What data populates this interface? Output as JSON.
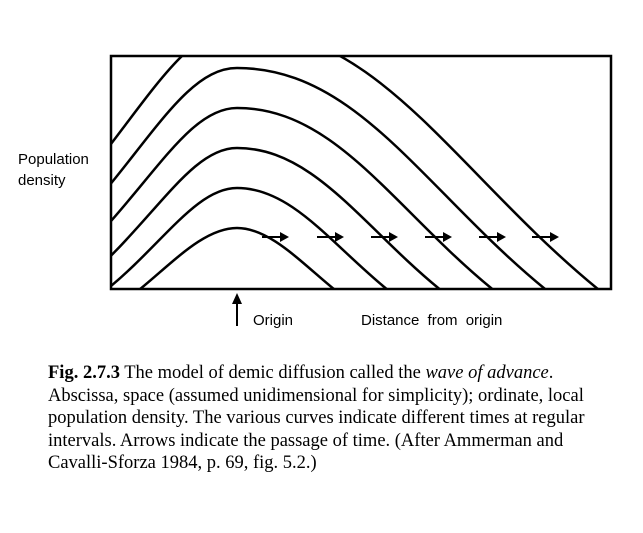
{
  "diagram": {
    "ylabel_line1": "Population",
    "ylabel_line2": "density",
    "origin_label": "Origin",
    "distance_label": "Distance from origin"
  },
  "caption": {
    "fig_label": "Fig. 2.7.3",
    "text_part1": " The model of demic diffusion called the ",
    "text_italic": "wave of advance",
    "text_part2": ". Abscissa, space (assumed unidimensional for simplicity); ordinate, local population density. The various curves indicate different times at regular intervals. Arrows indicate the passage of time. (After Ammerman and Cavalli-Sforza 1984, p. 69, fig. 5.2.)"
  }
}
